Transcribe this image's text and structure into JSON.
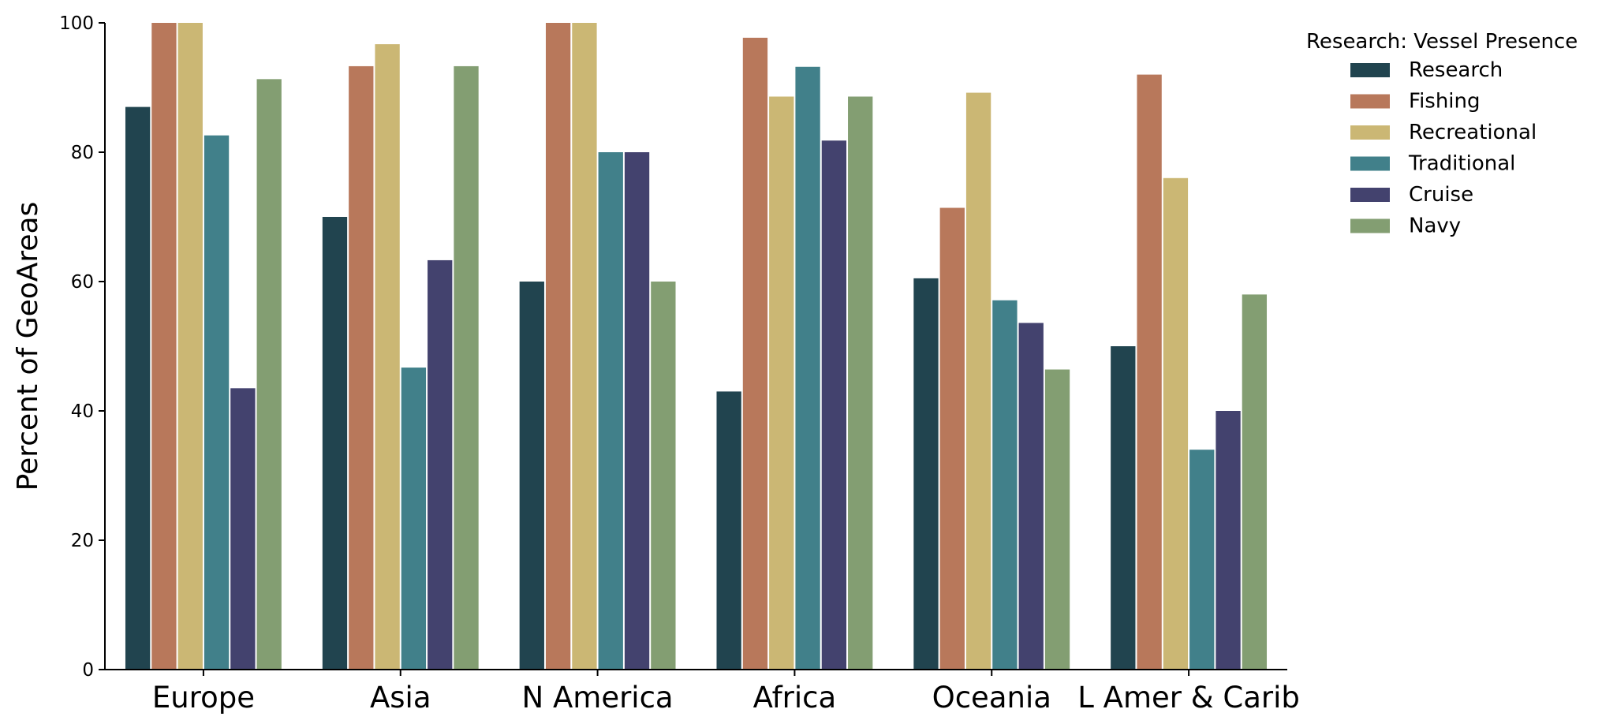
{
  "chart_data": {
    "type": "bar",
    "title": "",
    "xlabel": "",
    "ylabel": "Percent of GeoAreas",
    "ylim": [
      0,
      100
    ],
    "yticks": [
      0,
      20,
      40,
      60,
      80,
      100
    ],
    "grid": false,
    "legend": {
      "title": "Research: Vessel Presence",
      "placement": "outside-top-right"
    },
    "categories": [
      "Europe",
      "Asia",
      "N America",
      "Africa",
      "Oceania",
      "L Amer & Carib"
    ],
    "series": [
      {
        "name": "Research",
        "color": "#21444f",
        "values": [
          87,
          70,
          60,
          43,
          60.5,
          50
        ]
      },
      {
        "name": "Fishing",
        "color": "#b8785b",
        "values": [
          100,
          93.3,
          100,
          97.7,
          71.4,
          92
        ]
      },
      {
        "name": "Recreational",
        "color": "#cbb774",
        "values": [
          100,
          96.7,
          100,
          88.6,
          89.2,
          76
        ]
      },
      {
        "name": "Traditional",
        "color": "#41808a",
        "values": [
          82.6,
          46.7,
          80,
          93.2,
          57.1,
          34
        ]
      },
      {
        "name": "Cruise",
        "color": "#43426e",
        "values": [
          43.5,
          63.3,
          80,
          81.8,
          53.6,
          40
        ]
      },
      {
        "name": "Navy",
        "color": "#839e72",
        "values": [
          91.3,
          93.3,
          60,
          88.6,
          46.4,
          58
        ]
      }
    ]
  }
}
